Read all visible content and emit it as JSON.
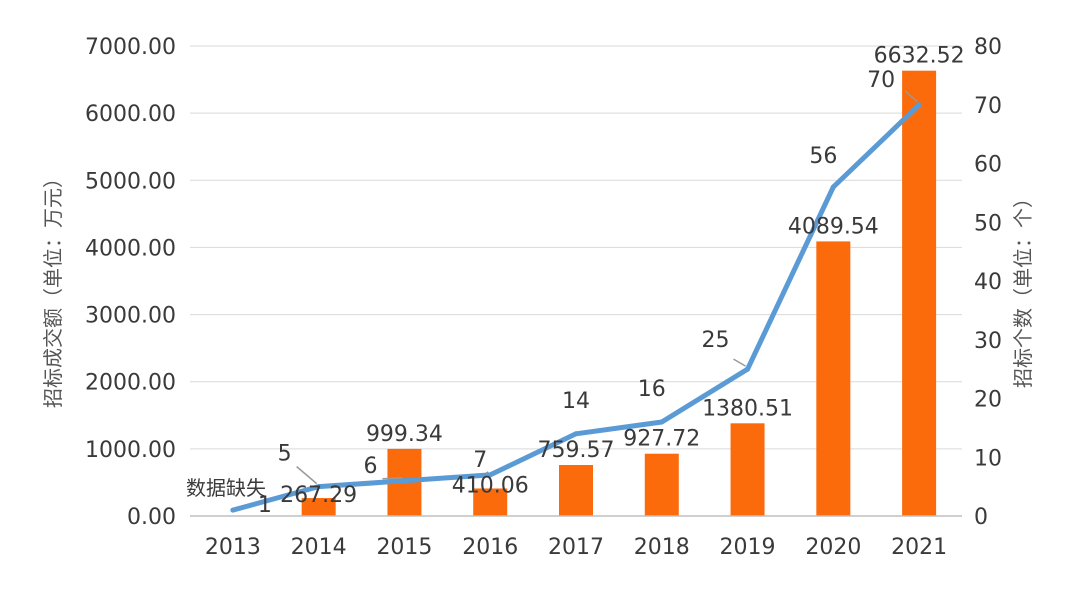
{
  "chart_data": {
    "type": "bar+line",
    "categories": [
      "2013",
      "2014",
      "2015",
      "2016",
      "2017",
      "2018",
      "2019",
      "2020",
      "2021"
    ],
    "series": [
      {
        "name": "",
        "kind": "bar",
        "axis": "left",
        "color": "#fb6a0b",
        "values": [
          null,
          267.29,
          999.34,
          410.06,
          759.57,
          927.72,
          1380.51,
          4089.54,
          6632.52
        ],
        "labels": [
          "",
          "267.29",
          "999.34",
          "410.06",
          "759.57",
          "927.72",
          "1380.51",
          "4089.54",
          "6632.52"
        ]
      },
      {
        "name": "",
        "kind": "line",
        "axis": "right",
        "color": "#5b9bd5",
        "values": [
          1,
          5,
          6,
          7,
          14,
          16,
          25,
          56,
          70
        ],
        "labels": [
          "1",
          "5",
          "6",
          "7",
          "14",
          "16",
          "25",
          "56",
          "70"
        ]
      }
    ],
    "missing_note": "数据缺失",
    "y_left": {
      "label": "招标成交额（单位：万元）",
      "lim": [
        0,
        7000
      ],
      "ticks": [
        "0.00",
        "1000.00",
        "2000.00",
        "3000.00",
        "4000.00",
        "5000.00",
        "6000.00",
        "7000.00"
      ]
    },
    "y_right": {
      "label": "招标个数（单位：个）",
      "lim": [
        0,
        80
      ],
      "ticks": [
        "0",
        "10",
        "20",
        "30",
        "40",
        "50",
        "60",
        "70",
        "80"
      ]
    },
    "grid": true,
    "legend": "none"
  }
}
